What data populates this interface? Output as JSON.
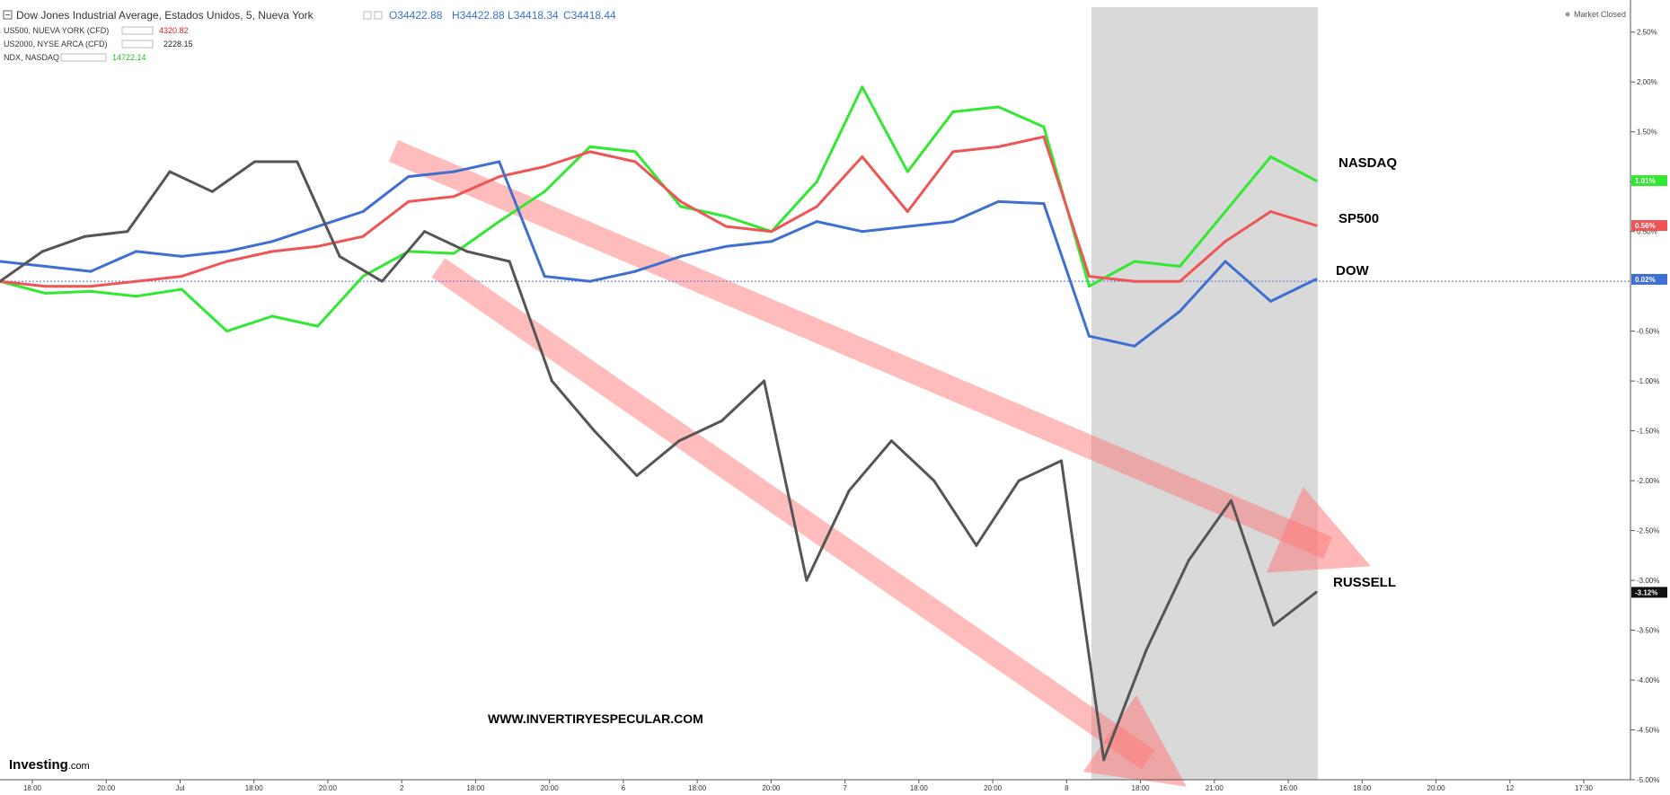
{
  "legend": {
    "main": {
      "name": "Dow Jones Industrial Average, Estados Unidos, 5, Nueva York",
      "open": "O34422.88",
      "high": "H34422.88",
      "low": "L34418.34",
      "close": "C34418.44"
    },
    "rows": [
      {
        "name": "US500, NUEVA YORK (CFD)",
        "value": "4320.82",
        "color": "#e01b1b"
      },
      {
        "name": "US2000, NYSE ARCA (CFD)",
        "value": "2228.15",
        "color": "#222222"
      },
      {
        "name": "NDX, NASDAQ",
        "value": "14722.14",
        "color": "#2db82d"
      }
    ]
  },
  "market_status": "Market Closed",
  "watermark": "WWW.INVERTIRYESPECULAR.COM",
  "brand": {
    "main": "Investing",
    "suffix": ".com"
  },
  "annotations": {
    "nasdaq": "NASDAQ",
    "sp500": "SP500",
    "dow": "DOW",
    "russell": "RUSSELL"
  },
  "chart_data": {
    "type": "line",
    "y_unit": "%",
    "ylim": [
      -5.0,
      2.75
    ],
    "y_ticks": [
      "2.50%",
      "2.00%",
      "1.50%",
      "1.00%",
      "0.50%",
      "-0.50%",
      "-1.00%",
      "-1.50%",
      "-2.00%",
      "-2.50%",
      "-3.00%",
      "-3.50%",
      "-4.00%",
      "-4.50%",
      "-5.00%"
    ],
    "x_ticks": [
      "18:00",
      "20:00",
      "Jul",
      "18:00",
      "20:00",
      "2",
      "18:00",
      "20:00",
      "6",
      "18:00",
      "20:00",
      "7",
      "18:00",
      "20:00",
      "8",
      "18:00",
      "21:00",
      "16:00",
      "18:00",
      "20:00",
      "12",
      "17:30"
    ],
    "shaded_session": "8",
    "series": [
      {
        "name": "NASDAQ",
        "color": "#33e833",
        "last": "1.01%",
        "values": [
          0.0,
          -0.12,
          -0.1,
          -0.15,
          -0.08,
          -0.5,
          -0.35,
          -0.45,
          0.05,
          0.3,
          0.28,
          0.6,
          0.9,
          1.35,
          1.3,
          0.75,
          0.65,
          0.5,
          1.0,
          1.95,
          1.1,
          1.7,
          1.75,
          1.55,
          -0.05,
          0.2,
          0.15,
          0.7,
          1.25,
          1.01
        ]
      },
      {
        "name": "SP500",
        "color": "#ee5555",
        "last": "0.56%",
        "values": [
          0.0,
          -0.05,
          -0.05,
          0.0,
          0.05,
          0.2,
          0.3,
          0.35,
          0.45,
          0.8,
          0.85,
          1.05,
          1.15,
          1.3,
          1.2,
          0.8,
          0.55,
          0.5,
          0.75,
          1.25,
          0.7,
          1.3,
          1.35,
          1.45,
          0.05,
          0.0,
          0.0,
          0.4,
          0.7,
          0.56
        ]
      },
      {
        "name": "DOW",
        "color": "#3f6fd1",
        "last": "0.02%",
        "values": [
          0.2,
          0.15,
          0.1,
          0.3,
          0.25,
          0.3,
          0.4,
          0.55,
          0.7,
          1.05,
          1.1,
          1.2,
          0.05,
          0.0,
          0.1,
          0.25,
          0.35,
          0.4,
          0.6,
          0.5,
          0.55,
          0.6,
          0.8,
          0.78,
          -0.55,
          -0.65,
          -0.3,
          0.2,
          -0.2,
          0.02
        ]
      },
      {
        "name": "RUSSELL",
        "color": "#555555",
        "last": "-3.12%",
        "values": [
          0.0,
          0.3,
          0.45,
          0.5,
          1.1,
          0.9,
          1.2,
          1.2,
          0.25,
          0.0,
          0.5,
          0.3,
          0.2,
          -1.0,
          -1.5,
          -1.95,
          -1.6,
          -1.4,
          -1.0,
          -3.0,
          -2.1,
          -1.6,
          -2.0,
          -2.65,
          -2.0,
          -1.8,
          -4.8,
          -3.7,
          -2.8,
          -2.2,
          -3.45,
          -3.12
        ]
      }
    ]
  }
}
